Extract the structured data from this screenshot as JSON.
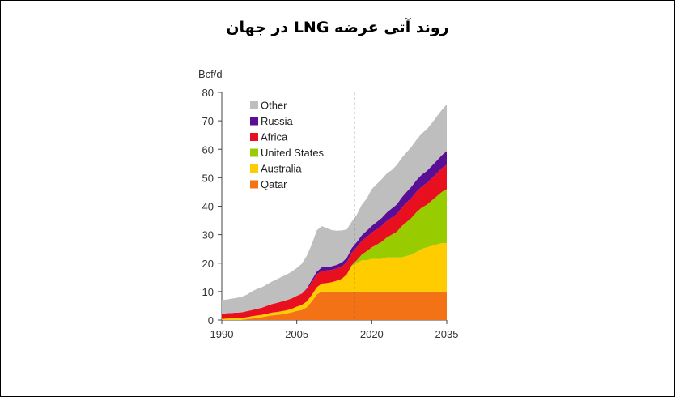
{
  "title": "روند آتی عرضه LNG در جهان",
  "chart_data": {
    "type": "area",
    "stacked": true,
    "ylabel": "Bcf/d",
    "xlim": [
      1990,
      2035
    ],
    "ylim": [
      0,
      80
    ],
    "xticks": [
      1990,
      2005,
      2020,
      2035
    ],
    "yticks": [
      0,
      10,
      20,
      30,
      40,
      50,
      60,
      70,
      80
    ],
    "x_tick_labels": [
      "1990",
      "2005",
      "2020",
      "2035"
    ],
    "y_tick_labels": [
      "0",
      "10",
      "20",
      "30",
      "40",
      "50",
      "60",
      "70",
      "80"
    ],
    "legend_position": "top-left",
    "divider_x": 2016.5,
    "x": [
      1990,
      1991,
      1992,
      1993,
      1994,
      1995,
      1996,
      1997,
      1998,
      1999,
      2000,
      2001,
      2002,
      2003,
      2004,
      2005,
      2006,
      2007,
      2008,
      2009,
      2010,
      2011,
      2012,
      2013,
      2014,
      2015,
      2016,
      2017,
      2018,
      2019,
      2020,
      2021,
      2022,
      2023,
      2024,
      2025,
      2026,
      2027,
      2028,
      2029,
      2030,
      2031,
      2032,
      2033,
      2034,
      2035
    ],
    "series": [
      {
        "name": "Qatar",
        "color": "#f47216",
        "values": [
          0,
          0,
          0,
          0,
          0,
          0.3,
          0.5,
          0.8,
          1,
          1.3,
          1.6,
          1.8,
          2,
          2.3,
          2.7,
          3.2,
          3.5,
          4.5,
          6.5,
          9,
          10,
          10,
          10,
          10,
          10,
          10,
          10,
          10,
          10,
          10,
          10,
          10,
          10,
          10,
          10,
          10,
          10,
          10,
          10,
          10,
          10,
          10,
          10,
          10,
          10,
          10
        ]
      },
      {
        "name": "Australia",
        "color": "#ffcc00",
        "values": [
          0.4,
          0.5,
          0.6,
          0.6,
          0.7,
          0.7,
          0.8,
          0.8,
          0.8,
          0.9,
          1,
          1,
          1.1,
          1.1,
          1.2,
          1.5,
          1.8,
          2,
          2.3,
          2.5,
          2.8,
          3,
          3.3,
          3.8,
          4.5,
          6,
          9,
          10,
          11,
          11,
          11.5,
          11.5,
          11.5,
          12,
          12,
          12,
          12,
          12.5,
          13,
          14,
          15,
          15.5,
          16,
          16.5,
          17,
          17
        ]
      },
      {
        "name": "United States",
        "color": "#99cc00",
        "values": [
          0,
          0,
          0,
          0,
          0,
          0,
          0,
          0,
          0,
          0,
          0,
          0,
          0,
          0,
          0,
          0,
          0,
          0,
          0,
          0,
          0,
          0,
          0,
          0,
          0,
          0,
          0.3,
          1,
          2,
          3.2,
          4,
          5,
          6,
          7,
          8,
          9,
          11,
          12,
          13,
          14,
          14.5,
          15,
          16,
          17,
          18,
          19
        ]
      },
      {
        "name": "Africa",
        "color": "#e8101f",
        "values": [
          1.8,
          1.9,
          1.9,
          2,
          2,
          2.1,
          2.2,
          2.3,
          2.5,
          2.8,
          3,
          3.2,
          3.4,
          3.6,
          3.7,
          3.8,
          4,
          4.3,
          4.5,
          4.5,
          4.5,
          4.4,
          4.3,
          4.3,
          4.3,
          4.3,
          4.4,
          4.6,
          4.8,
          5,
          5.2,
          5.4,
          5.6,
          5.8,
          6,
          6.2,
          6.5,
          6.8,
          7,
          7.2,
          7.4,
          7.6,
          7.8,
          8,
          8.3,
          8.6
        ]
      },
      {
        "name": "Russia",
        "color": "#5a0e96",
        "values": [
          0,
          0,
          0,
          0,
          0,
          0,
          0,
          0,
          0,
          0,
          0,
          0,
          0,
          0,
          0,
          0,
          0,
          0.3,
          0.8,
          1,
          1.2,
          1.3,
          1.3,
          1.3,
          1.4,
          1.5,
          1.6,
          1.8,
          2,
          2.2,
          2.4,
          2.6,
          2.8,
          3,
          3.2,
          3.4,
          3.6,
          3.8,
          4,
          4.1,
          4.2,
          4.3,
          4.4,
          4.5,
          4.6,
          4.8
        ]
      },
      {
        "name": "Other",
        "color": "#bebebe",
        "values": [
          4.8,
          4.8,
          5,
          5.2,
          5.5,
          5.8,
          6.5,
          7,
          7.2,
          7.5,
          7.9,
          8.3,
          8.7,
          9,
          9.4,
          9.8,
          10.5,
          11.5,
          12.5,
          14.5,
          14.5,
          13.6,
          12.7,
          12,
          11.3,
          10,
          9.3,
          9.6,
          10.7,
          11.3,
          12.9,
          13.3,
          13.6,
          13.7,
          13.5,
          13.9,
          13.9,
          13.9,
          14,
          14.2,
          14.4,
          14.6,
          15,
          15.5,
          15.9,
          16.4
        ]
      }
    ]
  }
}
